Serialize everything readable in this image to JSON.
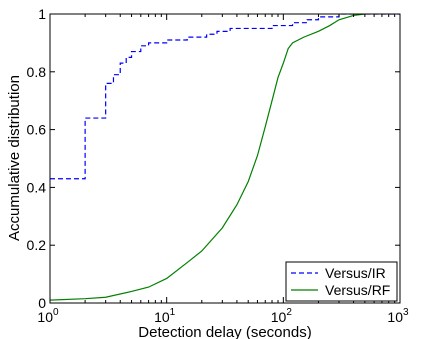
{
  "chart_data": {
    "type": "line",
    "xlabel": "Detection delay (seconds)",
    "ylabel": "Accumulative distribution",
    "xscale": "log",
    "xlim": [
      1,
      1000
    ],
    "ylim": [
      0,
      1
    ],
    "grid": false,
    "legend_position": "bottom-right",
    "x_ticks": [
      {
        "value": 1,
        "base": "10",
        "exp": "0"
      },
      {
        "value": 10,
        "base": "10",
        "exp": "1"
      },
      {
        "value": 100,
        "base": "10",
        "exp": "2"
      },
      {
        "value": 1000,
        "base": "10",
        "exp": "3"
      }
    ],
    "y_ticks": [
      {
        "value": 0,
        "label": "0"
      },
      {
        "value": 0.2,
        "label": "0.2"
      },
      {
        "value": 0.4,
        "label": "0.4"
      },
      {
        "value": 0.6,
        "label": "0.6"
      },
      {
        "value": 0.8,
        "label": "0.8"
      },
      {
        "value": 1,
        "label": "1"
      }
    ],
    "series": [
      {
        "name": "Versus/IR",
        "color": "#0000ff",
        "style": "dashed",
        "step": true,
        "points": [
          [
            1,
            0.43
          ],
          [
            2,
            0.43
          ],
          [
            2,
            0.64
          ],
          [
            3,
            0.64
          ],
          [
            3,
            0.76
          ],
          [
            3.5,
            0.76
          ],
          [
            3.5,
            0.79
          ],
          [
            4,
            0.79
          ],
          [
            4,
            0.83
          ],
          [
            4.5,
            0.83
          ],
          [
            4.5,
            0.85
          ],
          [
            5,
            0.85
          ],
          [
            5,
            0.87
          ],
          [
            6,
            0.87
          ],
          [
            6,
            0.89
          ],
          [
            7,
            0.89
          ],
          [
            7,
            0.9
          ],
          [
            10,
            0.9
          ],
          [
            10,
            0.91
          ],
          [
            15,
            0.91
          ],
          [
            15,
            0.92
          ],
          [
            22,
            0.92
          ],
          [
            22,
            0.93
          ],
          [
            27,
            0.93
          ],
          [
            27,
            0.94
          ],
          [
            35,
            0.94
          ],
          [
            35,
            0.95
          ],
          [
            80,
            0.95
          ],
          [
            80,
            0.96
          ],
          [
            120,
            0.96
          ],
          [
            120,
            0.97
          ],
          [
            160,
            0.97
          ],
          [
            160,
            0.98
          ],
          [
            200,
            0.98
          ],
          [
            200,
            0.99
          ],
          [
            300,
            0.99
          ],
          [
            300,
            1.0
          ],
          [
            1000,
            1.0
          ]
        ]
      },
      {
        "name": "Versus/RF",
        "color": "#008000",
        "style": "solid",
        "step": false,
        "points": [
          [
            1,
            0.01
          ],
          [
            2,
            0.015
          ],
          [
            3,
            0.02
          ],
          [
            5,
            0.04
          ],
          [
            7,
            0.055
          ],
          [
            10,
            0.085
          ],
          [
            15,
            0.14
          ],
          [
            20,
            0.18
          ],
          [
            30,
            0.26
          ],
          [
            40,
            0.34
          ],
          [
            50,
            0.42
          ],
          [
            60,
            0.51
          ],
          [
            70,
            0.61
          ],
          [
            80,
            0.7
          ],
          [
            90,
            0.78
          ],
          [
            100,
            0.83
          ],
          [
            110,
            0.88
          ],
          [
            120,
            0.9
          ],
          [
            150,
            0.92
          ],
          [
            200,
            0.94
          ],
          [
            250,
            0.96
          ],
          [
            300,
            0.98
          ],
          [
            400,
            0.995
          ],
          [
            500,
            1.0
          ]
        ]
      }
    ]
  }
}
